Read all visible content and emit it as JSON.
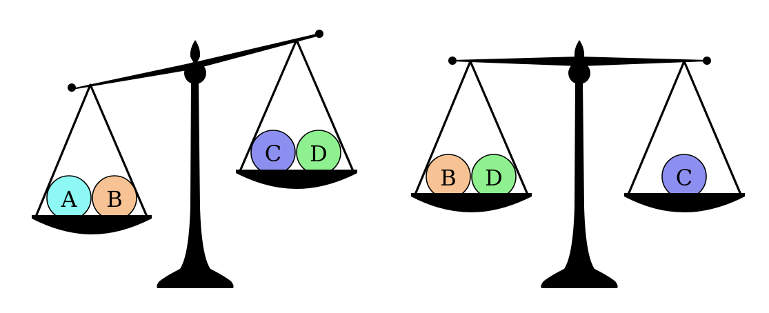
{
  "colors": {
    "ink": "#000000",
    "background": "#ffffff"
  },
  "scales": [
    {
      "name": "scale-left",
      "tilt": "right-side-up",
      "left_pan": {
        "balls": [
          {
            "label": "A",
            "color": "#8ef8f4"
          },
          {
            "label": "B",
            "color": "#f8c394"
          }
        ]
      },
      "right_pan": {
        "balls": [
          {
            "label": "C",
            "color": "#8d8ff0"
          },
          {
            "label": "D",
            "color": "#8ff08f"
          }
        ]
      }
    },
    {
      "name": "scale-right",
      "tilt": "level",
      "left_pan": {
        "balls": [
          {
            "label": "B",
            "color": "#f8c394"
          },
          {
            "label": "D",
            "color": "#8ff08f"
          }
        ]
      },
      "right_pan": {
        "balls": [
          {
            "label": "C",
            "color": "#8d8ff0"
          }
        ]
      }
    }
  ]
}
